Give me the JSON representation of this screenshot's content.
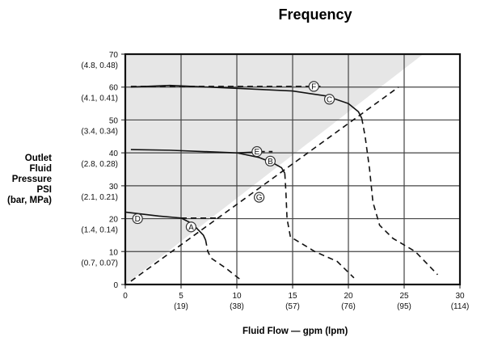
{
  "chart_data": {
    "type": "line",
    "title": "Frequency",
    "xlabel": "Fluid Flow — gpm (lpm)",
    "ylabel": [
      "Outlet",
      "Fluid",
      "Pressure",
      "PSI",
      "(bar, MPa)"
    ],
    "xlim": [
      0,
      30
    ],
    "ylim": [
      0,
      70
    ],
    "grid": true,
    "x_ticks": [
      {
        "value": 0,
        "label": "0",
        "sub": ""
      },
      {
        "value": 5,
        "label": "5",
        "sub": "(19)"
      },
      {
        "value": 10,
        "label": "10",
        "sub": "(38)"
      },
      {
        "value": 15,
        "label": "15",
        "sub": "(57)"
      },
      {
        "value": 20,
        "label": "20",
        "sub": "(76)"
      },
      {
        "value": 25,
        "label": "25",
        "sub": "(95)"
      },
      {
        "value": 30,
        "label": "30",
        "sub": "(114)"
      }
    ],
    "y_ticks": [
      {
        "value": 0,
        "label": "0",
        "sub": ""
      },
      {
        "value": 10,
        "label": "10",
        "sub": "(0.7, 0.07)"
      },
      {
        "value": 20,
        "label": "20",
        "sub": "(1.4, 0.14)"
      },
      {
        "value": 30,
        "label": "30",
        "sub": "(2.1, 0.21)"
      },
      {
        "value": 40,
        "label": "40",
        "sub": "(2.8, 0.28)"
      },
      {
        "value": 50,
        "label": "50",
        "sub": "(3.4, 0.34)"
      },
      {
        "value": 60,
        "label": "60",
        "sub": "(4.1, 0.41)"
      },
      {
        "value": 70,
        "label": "70",
        "sub": "(4.8, 0.48)"
      }
    ],
    "shaded_region": [
      [
        0,
        0
      ],
      [
        0,
        70
      ],
      [
        26.7,
        70
      ]
    ],
    "series": [
      {
        "name": "C",
        "style": "solid",
        "points": [
          [
            0.5,
            60
          ],
          [
            4,
            60.5
          ],
          [
            10,
            59.6
          ],
          [
            15,
            58.8
          ],
          [
            18,
            57.3
          ],
          [
            20,
            55
          ],
          [
            20.9,
            52.5
          ],
          [
            21.2,
            50.5
          ]
        ]
      },
      {
        "name": "C-dashed",
        "style": "dashed",
        "points": [
          [
            21.2,
            50.5
          ],
          [
            21.5,
            45
          ],
          [
            21.9,
            35
          ],
          [
            22.2,
            25
          ],
          [
            22.8,
            18
          ],
          [
            24,
            14
          ],
          [
            26,
            10
          ],
          [
            28,
            3
          ]
        ]
      },
      {
        "name": "F",
        "style": "dashed",
        "points": [
          [
            0.5,
            60.2
          ],
          [
            17.5,
            60.2
          ]
        ]
      },
      {
        "name": "E",
        "style": "solid",
        "points": [
          [
            0.5,
            41
          ],
          [
            4,
            40.8
          ],
          [
            10,
            40
          ],
          [
            12,
            40.3
          ]
        ]
      },
      {
        "name": "E-dashed",
        "style": "dashed",
        "points": [
          [
            12,
            40.4
          ],
          [
            13.2,
            40.4
          ]
        ]
      },
      {
        "name": "B",
        "style": "solid",
        "points": [
          [
            10,
            40
          ],
          [
            12,
            38.6
          ],
          [
            13.2,
            37
          ],
          [
            14,
            35.5
          ],
          [
            14.3,
            33.8
          ]
        ]
      },
      {
        "name": "B-dashed",
        "style": "dashed",
        "points": [
          [
            14.3,
            33.8
          ],
          [
            14.4,
            28
          ],
          [
            14.5,
            20
          ],
          [
            14.8,
            14.5
          ],
          [
            17,
            10
          ],
          [
            19,
            7
          ],
          [
            20.5,
            2
          ]
        ]
      },
      {
        "name": "D",
        "style": "solid",
        "points": [
          [
            0,
            22
          ],
          [
            3,
            20.8
          ],
          [
            5,
            20.2
          ]
        ]
      },
      {
        "name": "D-dashed",
        "style": "dashed",
        "points": [
          [
            5,
            20.2
          ],
          [
            8.5,
            20.2
          ]
        ]
      },
      {
        "name": "A",
        "style": "solid",
        "points": [
          [
            5,
            20.2
          ],
          [
            6,
            18.5
          ],
          [
            7,
            15
          ],
          [
            7.2,
            13.5
          ]
        ]
      },
      {
        "name": "A-dashed",
        "style": "dashed",
        "points": [
          [
            7.2,
            13.5
          ],
          [
            7.4,
            10
          ],
          [
            7.7,
            8
          ],
          [
            9,
            5
          ],
          [
            10.5,
            1
          ]
        ]
      },
      {
        "name": "G",
        "style": "dashed",
        "points": [
          [
            0.5,
            1
          ],
          [
            24.5,
            60
          ]
        ]
      }
    ],
    "labels": [
      {
        "text": "F",
        "x": 16.9,
        "y": 60.2
      },
      {
        "text": "C",
        "x": 18.3,
        "y": 56.3
      },
      {
        "text": "E",
        "x": 11.8,
        "y": 40.4
      },
      {
        "text": "B",
        "x": 13,
        "y": 37.5
      },
      {
        "text": "G",
        "x": 12,
        "y": 26.5
      },
      {
        "text": "D",
        "x": 1.1,
        "y": 20
      },
      {
        "text": "A",
        "x": 5.9,
        "y": 17.5
      }
    ]
  }
}
